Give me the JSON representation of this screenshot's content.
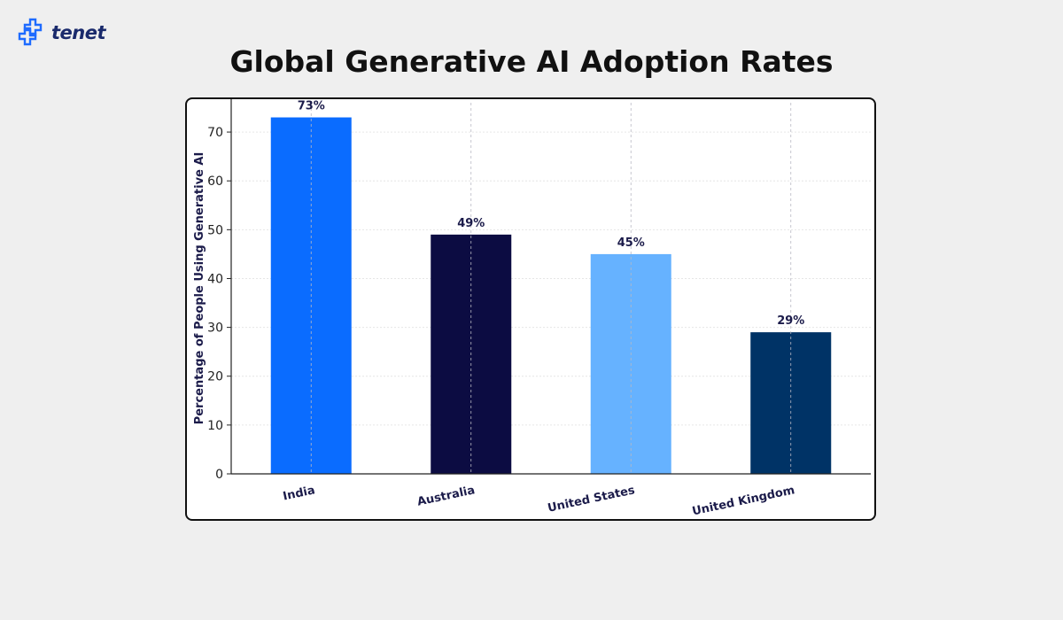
{
  "brand": {
    "name": "tenet",
    "logo_icon": "tenet-logo-icon",
    "color": "#1a2a6c",
    "accent": "#1e6bff"
  },
  "page": {
    "title": "Global Generative AI Adoption Rates"
  },
  "chart_data": {
    "type": "bar",
    "title": "Global Generative AI Adoption Rates",
    "xlabel": "",
    "ylabel": "Percentage of People Using Generative AI",
    "ylim": [
      0,
      76
    ],
    "yticks": [
      0,
      10,
      20,
      30,
      40,
      50,
      60,
      70
    ],
    "grid": true,
    "categories": [
      "India",
      "Australia",
      "United States",
      "United Kingdom"
    ],
    "values": [
      73,
      49,
      45,
      29
    ],
    "value_labels": [
      "73%",
      "49%",
      "45%",
      "29%"
    ],
    "colors": [
      "#0a6cff",
      "#0c0c42",
      "#66b2ff",
      "#003366"
    ]
  }
}
